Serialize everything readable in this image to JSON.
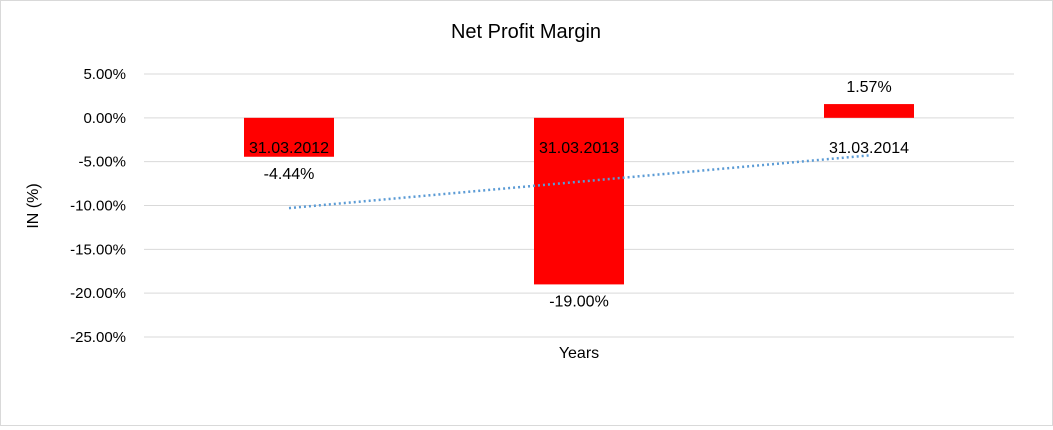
{
  "chart_data": {
    "type": "bar",
    "title": "Net Profit Margin",
    "xlabel": "Years",
    "ylabel": "IN (%)",
    "categories": [
      "31.03.2012",
      "31.03.2013",
      "31.03.2014"
    ],
    "series": [
      {
        "values": [
          -4.44,
          -19.0,
          1.57
        ]
      }
    ],
    "data_labels": [
      "-4.44%",
      "-19.00%",
      "1.57%"
    ],
    "y_ticks": [
      5,
      0,
      -5,
      -10,
      -15,
      -20,
      -25
    ],
    "y_tick_labels": [
      "5.00%",
      "0.00%",
      "-5.00%",
      "-10.00%",
      "-15.00%",
      "-20.00%",
      "-25.00%"
    ],
    "ylim": [
      -25,
      5
    ],
    "grid": true,
    "legend": "none",
    "trendline": {
      "type": "linear",
      "style": "dotted"
    },
    "colors": {
      "bar": "#ff0000",
      "trendline": "#5b9bd5",
      "grid": "#d9d9d9"
    }
  }
}
